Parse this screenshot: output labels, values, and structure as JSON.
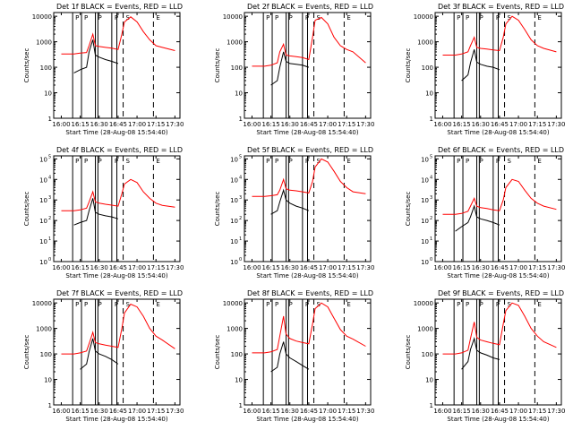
{
  "figure": {
    "xlabel": "Start Time (28-Aug-08 15:54:40)",
    "ylabel": "Counts/sec",
    "x_ticks": [
      "16:00",
      "16:15",
      "16:30",
      "16:45",
      "17:00",
      "17:15",
      "17:30"
    ],
    "y_ticks_plain": [
      "1",
      "10",
      "100",
      "1000",
      "10000"
    ],
    "y_ticks_exp_base": "10",
    "y_ticks_exp": [
      "0",
      "1",
      "2",
      "3",
      "4",
      "5"
    ],
    "interval_markers": [
      "P",
      "P",
      "P",
      "P",
      "S",
      "E"
    ],
    "colors": {
      "events": "#000000",
      "lld": "#ff0000",
      "axes": "#000000"
    }
  },
  "chart_data": [
    {
      "type": "line",
      "title": "Det 1f BLACK = Events, RED = LLD",
      "xlabel": "Start Time (28-Aug-08 15:54:40)",
      "ylabel": "Counts/sec",
      "yscale": "log",
      "ylim": [
        1,
        14000
      ],
      "ytick_style": "plain",
      "x": [
        "16:00",
        "16:10",
        "16:15",
        "16:20",
        "16:22",
        "16:25",
        "16:27",
        "16:30",
        "16:35",
        "16:40",
        "16:45",
        "16:48",
        "16:50",
        "16:55",
        "17:00",
        "17:05",
        "17:10",
        "17:15",
        "17:20",
        "17:30"
      ],
      "series": [
        {
          "name": "LLD",
          "values": [
            330,
            330,
            360,
            380,
            700,
            2000,
            700,
            650,
            600,
            560,
            500,
            2000,
            6000,
            9500,
            6000,
            2500,
            1200,
            700,
            600,
            450
          ]
        },
        {
          "name": "Events",
          "values": [
            null,
            60,
            80,
            100,
            400,
            1200,
            300,
            250,
            200,
            170,
            140,
            null,
            null,
            null,
            null,
            null,
            null,
            null,
            null,
            null
          ]
        }
      ]
    },
    {
      "type": "line",
      "title": "Det 2f BLACK = Events, RED = LLD",
      "xlabel": "Start Time (28-Aug-08 15:54:40)",
      "ylabel": "Counts/sec",
      "yscale": "log",
      "ylim": [
        1,
        14000
      ],
      "ytick_style": "plain",
      "x": [
        "16:00",
        "16:10",
        "16:15",
        "16:20",
        "16:22",
        "16:25",
        "16:27",
        "16:30",
        "16:35",
        "16:40",
        "16:45",
        "16:48",
        "16:50",
        "16:55",
        "17:00",
        "17:05",
        "17:10",
        "17:15",
        "17:20",
        "17:30"
      ],
      "series": [
        {
          "name": "LLD",
          "values": [
            110,
            110,
            120,
            150,
            400,
            800,
            300,
            280,
            260,
            240,
            200,
            1500,
            7000,
            9000,
            5000,
            1500,
            700,
            500,
            400,
            150
          ]
        },
        {
          "name": "Events",
          "values": [
            null,
            null,
            20,
            30,
            100,
            400,
            170,
            140,
            130,
            120,
            100,
            null,
            null,
            null,
            null,
            null,
            null,
            null,
            null,
            null
          ]
        }
      ]
    },
    {
      "type": "line",
      "title": "Det 3f BLACK = Events, RED = LLD",
      "xlabel": "Start Time (28-Aug-08 15:54:40)",
      "ylabel": "Counts/sec",
      "yscale": "log",
      "ylim": [
        1,
        14000
      ],
      "ytick_style": "plain",
      "x": [
        "16:00",
        "16:10",
        "16:15",
        "16:20",
        "16:22",
        "16:25",
        "16:27",
        "16:30",
        "16:35",
        "16:40",
        "16:45",
        "16:48",
        "16:50",
        "16:55",
        "17:00",
        "17:05",
        "17:10",
        "17:15",
        "17:20",
        "17:30"
      ],
      "series": [
        {
          "name": "LLD",
          "values": [
            300,
            300,
            330,
            400,
            700,
            1500,
            600,
            550,
            520,
            480,
            450,
            1500,
            5000,
            10000,
            7000,
            3000,
            1200,
            700,
            550,
            400
          ]
        },
        {
          "name": "Events",
          "values": [
            null,
            null,
            30,
            50,
            150,
            500,
            160,
            130,
            110,
            100,
            80,
            null,
            null,
            null,
            null,
            null,
            null,
            null,
            null,
            null
          ]
        }
      ]
    },
    {
      "type": "line",
      "title": "Det 4f BLACK = Events, RED = LLD",
      "xlabel": "Start Time (28-Aug-08 15:54:40)",
      "ylabel": "Counts/sec",
      "yscale": "log",
      "ylim": [
        1,
        140000
      ],
      "ytick_style": "exp",
      "x": [
        "16:00",
        "16:10",
        "16:15",
        "16:20",
        "16:22",
        "16:25",
        "16:27",
        "16:30",
        "16:35",
        "16:40",
        "16:45",
        "16:48",
        "16:50",
        "16:55",
        "17:00",
        "17:05",
        "17:10",
        "17:15",
        "17:20",
        "17:30"
      ],
      "series": [
        {
          "name": "LLD",
          "values": [
            300,
            300,
            330,
            400,
            800,
            2500,
            800,
            700,
            620,
            560,
            500,
            2000,
            6000,
            10000,
            7000,
            2500,
            1200,
            700,
            550,
            450
          ]
        },
        {
          "name": "Events",
          "values": [
            null,
            60,
            80,
            100,
            300,
            1200,
            250,
            200,
            170,
            150,
            120,
            null,
            null,
            null,
            null,
            null,
            null,
            null,
            null,
            null
          ]
        }
      ]
    },
    {
      "type": "line",
      "title": "Det 5f BLACK = Events, RED = LLD",
      "xlabel": "Start Time (28-Aug-08 15:54:40)",
      "ylabel": "Counts/sec",
      "yscale": "log",
      "ylim": [
        1,
        140000
      ],
      "ytick_style": "exp",
      "x": [
        "16:00",
        "16:10",
        "16:15",
        "16:20",
        "16:22",
        "16:25",
        "16:27",
        "16:30",
        "16:35",
        "16:40",
        "16:45",
        "16:48",
        "16:50",
        "16:55",
        "17:00",
        "17:05",
        "17:10",
        "17:15",
        "17:20",
        "17:30"
      ],
      "series": [
        {
          "name": "LLD",
          "values": [
            1500,
            1500,
            1600,
            1800,
            3000,
            10000,
            3500,
            3000,
            2800,
            2500,
            2200,
            8000,
            40000,
            100000,
            70000,
            25000,
            8000,
            4000,
            2500,
            2000
          ]
        },
        {
          "name": "Events",
          "values": [
            null,
            null,
            200,
            300,
            800,
            3000,
            1000,
            700,
            500,
            400,
            300,
            null,
            null,
            null,
            null,
            null,
            null,
            null,
            null,
            null
          ]
        }
      ]
    },
    {
      "type": "line",
      "title": "Det 6f BLACK = Events, RED = LLD",
      "xlabel": "Start Time (28-Aug-08 15:54:40)",
      "ylabel": "Counts/sec",
      "yscale": "log",
      "ylim": [
        1,
        140000
      ],
      "ytick_style": "exp",
      "x": [
        "16:00",
        "16:10",
        "16:15",
        "16:20",
        "16:22",
        "16:25",
        "16:27",
        "16:30",
        "16:35",
        "16:40",
        "16:45",
        "16:48",
        "16:50",
        "16:55",
        "17:00",
        "17:05",
        "17:10",
        "17:15",
        "17:20",
        "17:30"
      ],
      "series": [
        {
          "name": "LLD",
          "values": [
            200,
            200,
            220,
            280,
            500,
            1200,
            500,
            420,
            380,
            330,
            300,
            1000,
            4000,
            10000,
            8000,
            3000,
            1200,
            700,
            500,
            350
          ]
        },
        {
          "name": "Events",
          "values": [
            null,
            30,
            50,
            80,
            150,
            500,
            150,
            120,
            100,
            80,
            60,
            null,
            null,
            null,
            null,
            null,
            null,
            null,
            null,
            null
          ]
        }
      ]
    },
    {
      "type": "line",
      "title": "Det 7f BLACK = Events, RED = LLD",
      "xlabel": "Start Time (28-Aug-08 15:54:40)",
      "ylabel": "Counts/sec",
      "yscale": "log",
      "ylim": [
        1,
        14000
      ],
      "ytick_style": "plain",
      "x": [
        "16:00",
        "16:10",
        "16:15",
        "16:20",
        "16:22",
        "16:25",
        "16:27",
        "16:30",
        "16:35",
        "16:40",
        "16:45",
        "16:48",
        "16:50",
        "16:55",
        "17:00",
        "17:05",
        "17:10",
        "17:15",
        "17:20",
        "17:30"
      ],
      "series": [
        {
          "name": "LLD",
          "values": [
            100,
            100,
            110,
            130,
            250,
            700,
            280,
            250,
            220,
            200,
            180,
            1000,
            4000,
            9000,
            7000,
            3000,
            1000,
            500,
            350,
            160
          ]
        },
        {
          "name": "Events",
          "values": [
            null,
            null,
            25,
            40,
            120,
            400,
            130,
            100,
            80,
            60,
            40,
            null,
            null,
            null,
            null,
            null,
            null,
            null,
            null,
            null
          ]
        }
      ]
    },
    {
      "type": "line",
      "title": "Det 8f BLACK = Events, RED = LLD",
      "xlabel": "Start Time (28-Aug-08 15:54:40)",
      "ylabel": "Counts/sec",
      "yscale": "log",
      "ylim": [
        1,
        14000
      ],
      "ytick_style": "plain",
      "x": [
        "16:00",
        "16:10",
        "16:15",
        "16:20",
        "16:22",
        "16:25",
        "16:27",
        "16:30",
        "16:35",
        "16:40",
        "16:45",
        "16:48",
        "16:50",
        "16:55",
        "17:00",
        "17:05",
        "17:10",
        "17:15",
        "17:20",
        "17:30"
      ],
      "series": [
        {
          "name": "LLD",
          "values": [
            110,
            110,
            120,
            150,
            500,
            3000,
            600,
            400,
            320,
            280,
            250,
            1500,
            6000,
            10000,
            7000,
            2500,
            900,
            500,
            380,
            200
          ]
        },
        {
          "name": "Events",
          "values": [
            null,
            null,
            20,
            30,
            100,
            300,
            100,
            70,
            50,
            35,
            25,
            null,
            null,
            null,
            null,
            null,
            null,
            null,
            null,
            null
          ]
        }
      ]
    },
    {
      "type": "line",
      "title": "Det 9f BLACK = Events, RED = LLD",
      "xlabel": "Start Time (28-Aug-08 15:54:40)",
      "ylabel": "Counts/sec",
      "yscale": "log",
      "ylim": [
        1,
        14000
      ],
      "ytick_style": "plain",
      "x": [
        "16:00",
        "16:10",
        "16:15",
        "16:20",
        "16:22",
        "16:25",
        "16:27",
        "16:30",
        "16:35",
        "16:40",
        "16:45",
        "16:48",
        "16:50",
        "16:55",
        "17:00",
        "17:05",
        "17:10",
        "17:15",
        "17:20",
        "17:30"
      ],
      "series": [
        {
          "name": "LLD",
          "values": [
            100,
            100,
            110,
            140,
            400,
            1800,
            450,
            350,
            300,
            260,
            230,
            1500,
            5000,
            10000,
            8000,
            3000,
            1000,
            500,
            300,
            180
          ]
        },
        {
          "name": "Events",
          "values": [
            null,
            null,
            25,
            50,
            150,
            400,
            140,
            110,
            90,
            70,
            60,
            null,
            null,
            null,
            null,
            null,
            null,
            null,
            null,
            null
          ]
        }
      ]
    }
  ]
}
